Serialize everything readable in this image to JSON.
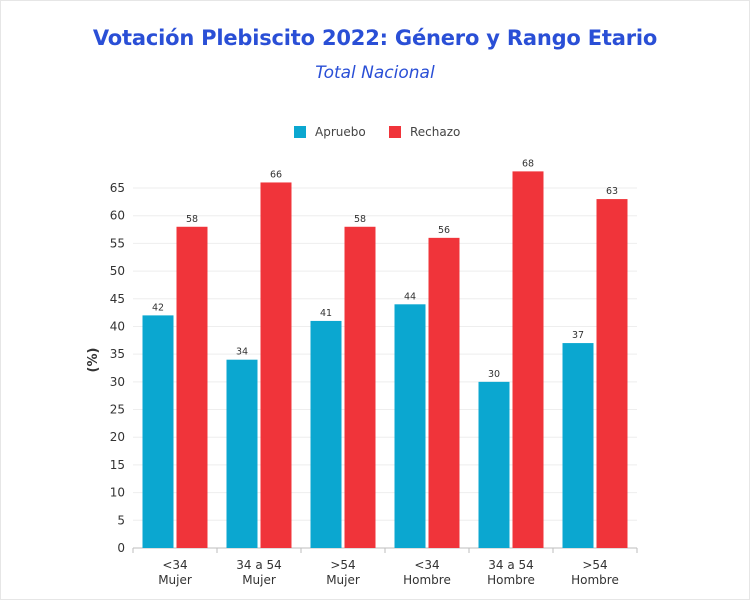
{
  "title": "Votación Plebiscito 2022: Género y Rango Etario",
  "subtitle": "Total Nacional",
  "colors": {
    "title": "#2a4fd6",
    "apruebo": "#0ba7d0",
    "rechazo": "#f0343a"
  },
  "chart_data": {
    "type": "bar",
    "title": "Votación Plebiscito 2022: Género y Rango Etario",
    "subtitle": "Total Nacional",
    "xlabel": "",
    "ylabel": "(%)",
    "ylim": [
      0,
      65
    ],
    "yticks": [
      0,
      5,
      10,
      15,
      20,
      25,
      30,
      35,
      40,
      45,
      50,
      55,
      60,
      65
    ],
    "grid": true,
    "legend_position": "top-center",
    "categories": [
      [
        "<34",
        "Mujer"
      ],
      [
        "34 a 54",
        "Mujer"
      ],
      [
        ">54",
        "Mujer"
      ],
      [
        "<34",
        "Hombre"
      ],
      [
        "34 a 54",
        "Hombre"
      ],
      [
        ">54",
        "Hombre"
      ]
    ],
    "series": [
      {
        "name": "Apruebo",
        "color": "#0ba7d0",
        "values": [
          42,
          34,
          41,
          44,
          30,
          37
        ]
      },
      {
        "name": "Rechazo",
        "color": "#f0343a",
        "values": [
          58,
          66,
          58,
          56,
          68,
          63
        ]
      }
    ]
  }
}
